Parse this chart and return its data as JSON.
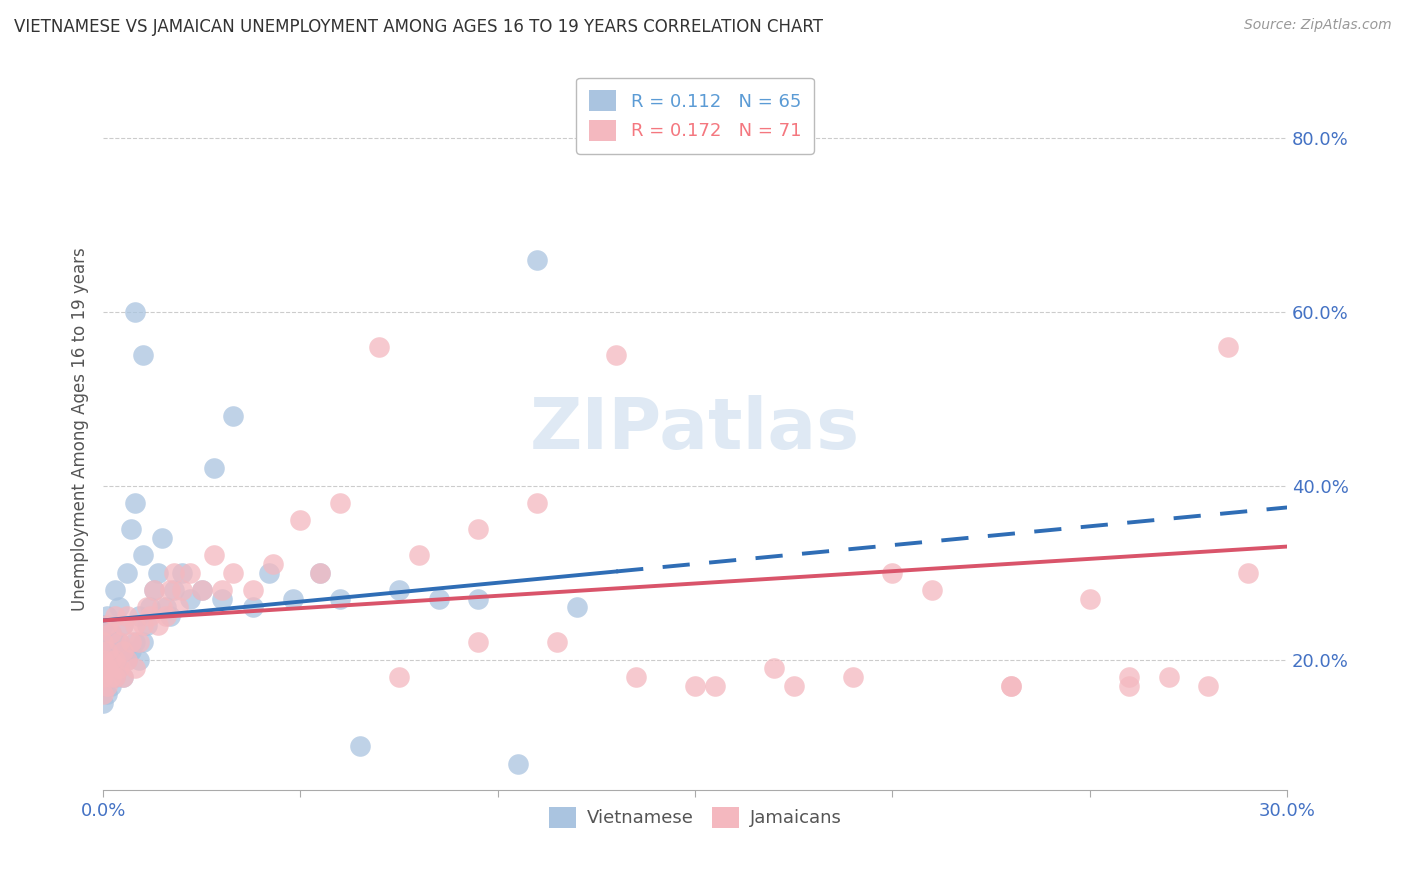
{
  "title": "VIETNAMESE VS JAMAICAN UNEMPLOYMENT AMONG AGES 16 TO 19 YEARS CORRELATION CHART",
  "source": "Source: ZipAtlas.com",
  "ylabel": "Unemployment Among Ages 16 to 19 years",
  "x_min": 0.0,
  "x_max": 0.3,
  "y_min": 0.05,
  "y_max": 0.88,
  "x_ticks": [
    0.0,
    0.05,
    0.1,
    0.15,
    0.2,
    0.25,
    0.3
  ],
  "x_tick_labels": [
    "0.0%",
    "",
    "",
    "",
    "",
    "",
    "30.0%"
  ],
  "y_ticks": [
    0.2,
    0.4,
    0.6,
    0.8
  ],
  "y_tick_labels": [
    "20.0%",
    "40.0%",
    "60.0%",
    "80.0%"
  ],
  "legend_R_N": [
    {
      "label": "R = 0.112   N = 65",
      "color": "#5b9bd5"
    },
    {
      "label": "R = 0.172   N = 71",
      "color": "#f4777f"
    }
  ],
  "vietnamese_color": "#aac4e0",
  "jamaican_color": "#f4b8bf",
  "viet_line_color": "#2f6db5",
  "jam_line_color": "#d9546a",
  "tick_color": "#4472c4",
  "watermark": "ZIPatlas",
  "viet_line_solid_x_end": 0.13,
  "viet_line_x0": 0.0,
  "viet_line_x1": 0.3,
  "viet_line_y0": 0.245,
  "viet_line_y1": 0.375,
  "jam_line_x0": 0.0,
  "jam_line_x1": 0.3,
  "jam_line_y0": 0.245,
  "jam_line_y1": 0.33,
  "viet_scatter_x": [
    0.0,
    0.0,
    0.0,
    0.0,
    0.0,
    0.0,
    0.0,
    0.0,
    0.001,
    0.001,
    0.001,
    0.001,
    0.001,
    0.002,
    0.002,
    0.002,
    0.002,
    0.003,
    0.003,
    0.003,
    0.003,
    0.004,
    0.004,
    0.004,
    0.005,
    0.005,
    0.005,
    0.006,
    0.006,
    0.007,
    0.007,
    0.008,
    0.008,
    0.009,
    0.009,
    0.01,
    0.01,
    0.011,
    0.012,
    0.013,
    0.014,
    0.015,
    0.016,
    0.017,
    0.018,
    0.02,
    0.022,
    0.025,
    0.028,
    0.03,
    0.033,
    0.038,
    0.042,
    0.048,
    0.055,
    0.06,
    0.065,
    0.075,
    0.085,
    0.095,
    0.105,
    0.11,
    0.12,
    0.008,
    0.01
  ],
  "viet_scatter_y": [
    0.15,
    0.17,
    0.18,
    0.19,
    0.2,
    0.21,
    0.22,
    0.24,
    0.16,
    0.18,
    0.2,
    0.22,
    0.25,
    0.17,
    0.19,
    0.21,
    0.23,
    0.18,
    0.2,
    0.22,
    0.28,
    0.19,
    0.22,
    0.26,
    0.18,
    0.21,
    0.24,
    0.2,
    0.3,
    0.21,
    0.35,
    0.22,
    0.38,
    0.2,
    0.25,
    0.22,
    0.32,
    0.24,
    0.26,
    0.28,
    0.3,
    0.34,
    0.26,
    0.25,
    0.28,
    0.3,
    0.27,
    0.28,
    0.42,
    0.27,
    0.48,
    0.26,
    0.3,
    0.27,
    0.3,
    0.27,
    0.1,
    0.28,
    0.27,
    0.27,
    0.08,
    0.66,
    0.26,
    0.6,
    0.55
  ],
  "jam_scatter_x": [
    0.0,
    0.0,
    0.0,
    0.0,
    0.001,
    0.001,
    0.001,
    0.001,
    0.002,
    0.002,
    0.002,
    0.003,
    0.003,
    0.003,
    0.004,
    0.004,
    0.005,
    0.005,
    0.005,
    0.006,
    0.006,
    0.007,
    0.008,
    0.008,
    0.009,
    0.01,
    0.011,
    0.012,
    0.013,
    0.014,
    0.015,
    0.016,
    0.017,
    0.018,
    0.019,
    0.02,
    0.022,
    0.025,
    0.028,
    0.03,
    0.033,
    0.038,
    0.043,
    0.05,
    0.055,
    0.06,
    0.07,
    0.08,
    0.095,
    0.11,
    0.13,
    0.15,
    0.17,
    0.19,
    0.21,
    0.23,
    0.25,
    0.26,
    0.27,
    0.28,
    0.285,
    0.29,
    0.26,
    0.23,
    0.2,
    0.175,
    0.155,
    0.135,
    0.115,
    0.095,
    0.075
  ],
  "jam_scatter_y": [
    0.16,
    0.18,
    0.2,
    0.22,
    0.17,
    0.19,
    0.21,
    0.24,
    0.18,
    0.2,
    0.23,
    0.18,
    0.2,
    0.25,
    0.19,
    0.22,
    0.18,
    0.21,
    0.24,
    0.2,
    0.25,
    0.22,
    0.19,
    0.24,
    0.22,
    0.24,
    0.26,
    0.25,
    0.28,
    0.24,
    0.26,
    0.25,
    0.28,
    0.3,
    0.26,
    0.28,
    0.3,
    0.28,
    0.32,
    0.28,
    0.3,
    0.28,
    0.31,
    0.36,
    0.3,
    0.38,
    0.56,
    0.32,
    0.35,
    0.38,
    0.55,
    0.17,
    0.19,
    0.18,
    0.28,
    0.17,
    0.27,
    0.17,
    0.18,
    0.17,
    0.56,
    0.3,
    0.18,
    0.17,
    0.3,
    0.17,
    0.17,
    0.18,
    0.22,
    0.22,
    0.18
  ]
}
